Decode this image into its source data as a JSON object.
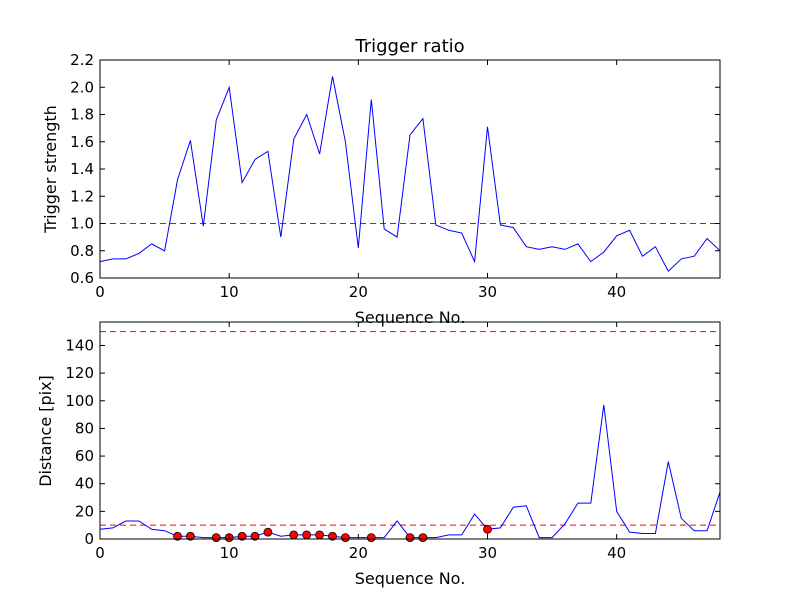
{
  "chart_data": [
    {
      "type": "line",
      "title": "Trigger ratio",
      "xlabel": "Sequence No.",
      "ylabel": "Trigger strength",
      "xlim": [
        0,
        48
      ],
      "ylim": [
        0.6,
        2.2
      ],
      "xticks": [
        0,
        10,
        20,
        30,
        40
      ],
      "yticks": [
        0.6,
        0.8,
        1.0,
        1.2,
        1.4,
        1.6,
        1.8,
        2.0,
        2.2
      ],
      "ytick_labels": [
        "0.6",
        "0.8",
        "1.0",
        "1.2",
        "1.4",
        "1.6",
        "1.8",
        "2.0",
        "2.2"
      ],
      "line_color": "#0000ff",
      "threshold": {
        "value": 1.0,
        "color": "#ff0000",
        "style": "dashed"
      },
      "series": [
        {
          "name": "trigger strength",
          "x": [
            0,
            1,
            2,
            3,
            4,
            5,
            6,
            7,
            8,
            9,
            10,
            11,
            12,
            13,
            14,
            15,
            16,
            17,
            18,
            19,
            20,
            21,
            22,
            23,
            24,
            25,
            26,
            27,
            28,
            29,
            30,
            31,
            32,
            33,
            34,
            35,
            36,
            37,
            38,
            39,
            40,
            41,
            42,
            43,
            44,
            45,
            46,
            47,
            48
          ],
          "values": [
            0.72,
            0.74,
            0.74,
            0.78,
            0.85,
            0.8,
            1.32,
            1.61,
            0.98,
            1.76,
            2.0,
            1.3,
            1.47,
            1.53,
            0.9,
            1.62,
            1.8,
            1.51,
            2.08,
            1.6,
            0.82,
            1.91,
            0.96,
            0.9,
            1.65,
            1.77,
            0.99,
            0.95,
            0.93,
            0.72,
            1.71,
            0.99,
            0.97,
            0.83,
            0.81,
            0.83,
            0.81,
            0.85,
            0.72,
            0.79,
            0.91,
            0.95,
            0.76,
            0.83,
            0.65,
            0.74,
            0.76,
            0.89,
            0.8
          ]
        }
      ]
    },
    {
      "type": "line",
      "title": "",
      "xlabel": "Sequence No.",
      "ylabel": "Distance [pix]",
      "xlim": [
        0,
        48
      ],
      "ylim": [
        0,
        157
      ],
      "xticks": [
        0,
        10,
        20,
        30,
        40
      ],
      "yticks": [
        0,
        20,
        40,
        60,
        80,
        100,
        120,
        140
      ],
      "line_color": "#0000ff",
      "marker_color": "#ff0000",
      "thresholds": [
        {
          "value": 10,
          "color": "#ff0000",
          "style": "dashed"
        },
        {
          "value": 150,
          "color": "#ff0000",
          "style": "dashed"
        }
      ],
      "series": [
        {
          "name": "distance",
          "x": [
            0,
            1,
            2,
            3,
            4,
            5,
            6,
            7,
            8,
            9,
            10,
            11,
            12,
            13,
            14,
            15,
            16,
            17,
            18,
            19,
            20,
            21,
            22,
            23,
            24,
            25,
            26,
            27,
            28,
            29,
            30,
            31,
            32,
            33,
            34,
            35,
            36,
            37,
            38,
            39,
            40,
            41,
            42,
            43,
            44,
            45,
            46,
            47,
            48
          ],
          "values": [
            7,
            8,
            13,
            13,
            7,
            6,
            2,
            2,
            1,
            1,
            1,
            2,
            2,
            5,
            2,
            3,
            3,
            3,
            2,
            1,
            1,
            1,
            1,
            13,
            1,
            1,
            1,
            3,
            3,
            18,
            7,
            8,
            23,
            24,
            1,
            1,
            11,
            26,
            26,
            97,
            20,
            5,
            4,
            4,
            56,
            15,
            6,
            6,
            34
          ]
        },
        {
          "name": "triggered",
          "x": [
            6,
            7,
            9,
            10,
            11,
            12,
            13,
            15,
            16,
            17,
            18,
            19,
            21,
            24,
            25,
            30
          ],
          "values": [
            2,
            2,
            1,
            1,
            2,
            2,
            5,
            3,
            3,
            3,
            2,
            1,
            1,
            1,
            1,
            7
          ]
        }
      ]
    }
  ]
}
